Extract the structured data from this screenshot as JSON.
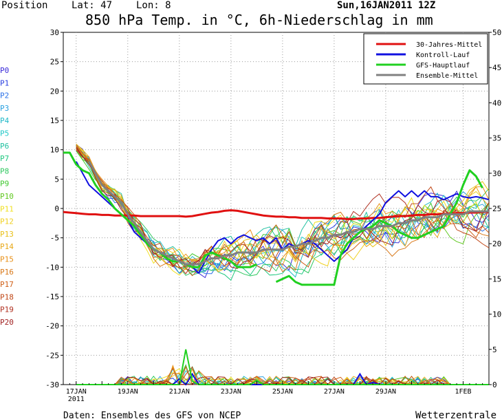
{
  "header": {
    "position": "Position",
    "lat": "Lat: 47",
    "lon": "Lon: 8",
    "date": "Sun,16JAN2011 12Z",
    "title": "850 hPa Temp. in °C, 6h-Niederschlag in mm"
  },
  "footer": {
    "source": "Daten: Ensembles des GFS von NCEP",
    "brand": "Wetterzentrale"
  },
  "members": [
    {
      "label": "P0",
      "color": "#3a2ad8"
    },
    {
      "label": "P1",
      "color": "#2a40e0"
    },
    {
      "label": "P2",
      "color": "#2a70e8"
    },
    {
      "label": "P3",
      "color": "#28a0e0"
    },
    {
      "label": "P4",
      "color": "#20b8c8"
    },
    {
      "label": "P5",
      "color": "#20c8c8"
    },
    {
      "label": "P6",
      "color": "#20c0a0"
    },
    {
      "label": "P7",
      "color": "#20c880"
    },
    {
      "label": "P8",
      "color": "#30c860"
    },
    {
      "label": "P9",
      "color": "#40c830"
    },
    {
      "label": "P10",
      "color": "#60c820"
    },
    {
      "label": "P11",
      "color": "#f0e020"
    },
    {
      "label": "P12",
      "color": "#f0d020"
    },
    {
      "label": "P13",
      "color": "#e8c018"
    },
    {
      "label": "P14",
      "color": "#e8a818"
    },
    {
      "label": "P15",
      "color": "#e89018"
    },
    {
      "label": "P16",
      "color": "#d87818"
    },
    {
      "label": "P17",
      "color": "#d06018"
    },
    {
      "label": "P18",
      "color": "#c04818"
    },
    {
      "label": "P19",
      "color": "#b03020"
    },
    {
      "label": "P20",
      "color": "#a02020"
    }
  ],
  "chart_data": {
    "type": "line",
    "x_start": "2011-01-16 12Z",
    "x_step": "6h",
    "xlim_steps": [
      0,
      66
    ],
    "ylim": [
      -30,
      30
    ],
    "y_ticks": [
      30,
      25,
      20,
      15,
      10,
      5,
      0,
      -5,
      -10,
      -15,
      -20,
      -25,
      -30
    ],
    "ylim_right": [
      0,
      50
    ],
    "y2_ticks": [
      50,
      45,
      40,
      35,
      30,
      25,
      20,
      15,
      10,
      5,
      0
    ],
    "x_ticks": [
      {
        "step": 2,
        "label": "17JAN",
        "sub": "2011"
      },
      {
        "step": 10,
        "label": "19JAN"
      },
      {
        "step": 18,
        "label": "21JAN"
      },
      {
        "step": 26,
        "label": "23JAN"
      },
      {
        "step": 34,
        "label": "25JAN"
      },
      {
        "step": 42,
        "label": "27JAN"
      },
      {
        "step": 50,
        "label": "29JAN"
      },
      {
        "step": 62,
        "label": "1FEB"
      }
    ],
    "grid": true,
    "legend_position": "top-right",
    "series": [
      {
        "name": "30-Jahres-Mittel",
        "color": "#e01010",
        "width": 3,
        "values": [
          -0.6,
          -0.7,
          -0.8,
          -0.9,
          -1.0,
          -1.0,
          -1.1,
          -1.1,
          -1.2,
          -1.2,
          -1.2,
          -1.2,
          -1.3,
          -1.3,
          -1.3,
          -1.3,
          -1.3,
          -1.3,
          -1.3,
          -1.4,
          -1.3,
          -1.1,
          -0.9,
          -0.7,
          -0.6,
          -0.4,
          -0.3,
          -0.4,
          -0.6,
          -0.8,
          -1.0,
          -1.2,
          -1.3,
          -1.4,
          -1.4,
          -1.5,
          -1.5,
          -1.6,
          -1.6,
          -1.6,
          -1.6,
          -1.7,
          -1.7,
          -1.7,
          -1.8,
          -1.8,
          -1.7,
          -1.7,
          -1.6,
          -1.6,
          -1.5,
          -1.4,
          -1.3,
          -1.3,
          -1.2,
          -1.1,
          -1.1,
          -1.0,
          -1.0,
          -0.9,
          -0.9,
          -0.8,
          -0.8,
          -0.7,
          -0.7,
          -0.6,
          -0.6
        ]
      },
      {
        "name": "Kontroll-Lauf",
        "color": "#1010e0",
        "width": 2,
        "values": [
          null,
          null,
          8,
          6,
          4,
          3,
          2,
          1,
          0,
          -1,
          -2,
          -4,
          -5,
          -6,
          -7,
          -7.5,
          -8,
          -8.5,
          -9,
          -9.5,
          -10,
          -11,
          -9,
          -7,
          -5.5,
          -5,
          -6,
          -5,
          -4.5,
          -5,
          -5.5,
          -5,
          -6,
          -5,
          -7,
          -6,
          -6.5,
          -6,
          -5.5,
          -6,
          -7,
          -8,
          -9,
          -8,
          -7,
          -5,
          -4,
          -3,
          -2,
          -1,
          1,
          2,
          3,
          2,
          3,
          2,
          3,
          2,
          2,
          1.5,
          2,
          2.5,
          2,
          1.8,
          2,
          1.8,
          1.5
        ]
      },
      {
        "name": "GFS-Hauptlauf",
        "color": "#20d020",
        "width": 3,
        "values": [
          9.5,
          9.5,
          7.5,
          6.5,
          6,
          4,
          2.5,
          1.5,
          0,
          -1,
          -2,
          -3,
          -4.5,
          -6,
          -7,
          -7.5,
          -8.5,
          -9,
          -9,
          -9.5,
          -10,
          -10,
          -8,
          -7.5,
          -8,
          -8.5,
          -9,
          -10,
          -10,
          -10,
          -9.5,
          null,
          null,
          -12.5,
          -12,
          -11.5,
          -12.5,
          -13,
          -13,
          -13,
          -13,
          -13,
          -13,
          -8,
          -6,
          -5,
          -4,
          -3.5,
          -3,
          -2,
          -2.5,
          -3,
          -4,
          -4.5,
          -5,
          -5,
          -4.5,
          -4,
          -3.5,
          -3,
          -1,
          1,
          4,
          6.5,
          5.5,
          3.5
        ]
      },
      {
        "name": "Ensemble-Mittel",
        "color": "#808080",
        "width": 3,
        "values": [
          null,
          null,
          null,
          null,
          8,
          6,
          4,
          3,
          2,
          1,
          -1,
          -2.5,
          -4,
          -5.5,
          -7,
          -7.5,
          -8,
          -8.5,
          -9,
          -9.5,
          -9.5,
          -9.5,
          -9,
          -8.5,
          -8.5,
          -8,
          -8,
          -7.5,
          -7.5,
          -7.5,
          -7.5,
          -7,
          -7,
          -7,
          -7,
          -6.5,
          -6.5,
          -6,
          -6,
          -5.5,
          -5,
          -5,
          -4.5,
          -4.5,
          -4,
          -4,
          -3.5,
          -3.5,
          -3.5,
          -3,
          -3,
          -3,
          -2.5,
          -2.5,
          -2,
          -2,
          -1.5,
          -1.5,
          -1.5,
          -1,
          -1,
          -1,
          -1,
          -0.5,
          -0.5,
          -0.5,
          -0.5
        ]
      }
    ]
  }
}
